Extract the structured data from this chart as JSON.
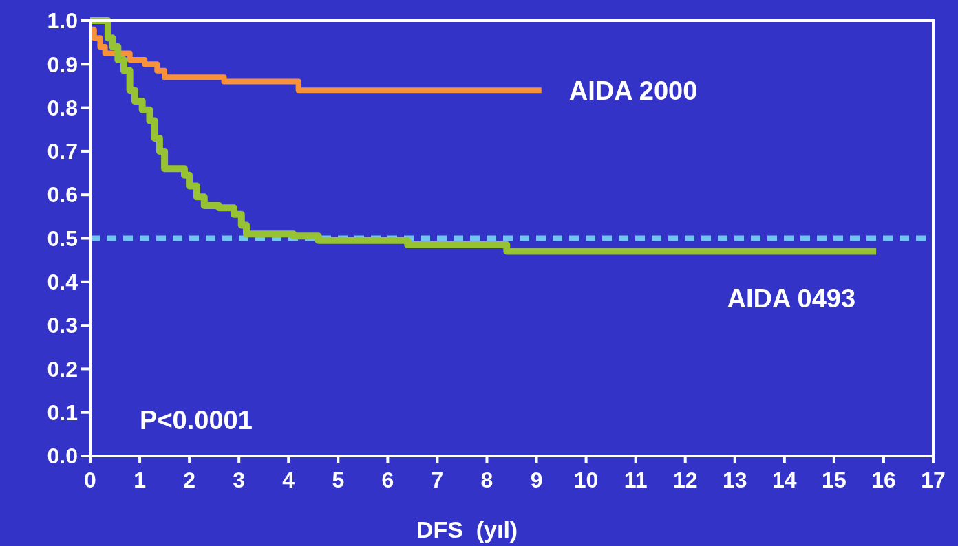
{
  "chart_data": {
    "type": "step",
    "xlabel": "DFS  (yıl)",
    "xlim": [
      0,
      17
    ],
    "xticks": [
      0,
      1,
      2,
      3,
      4,
      5,
      6,
      7,
      8,
      9,
      10,
      11,
      12,
      13,
      14,
      15,
      16,
      17
    ],
    "ylim": [
      0,
      1
    ],
    "yticks": [
      {
        "value": 0,
        "label": "0.0"
      },
      0.1,
      0.2,
      0.3,
      0.4,
      0.5,
      0.6,
      0.7,
      0.8,
      0.9,
      {
        "value": 1,
        "label": "1.0"
      }
    ],
    "grid": false,
    "marker": "none",
    "line_style": "solid",
    "series": [
      {
        "name": "AIDA 2000",
        "color": "#f7923a",
        "x": [
          0,
          0.08,
          0.2,
          0.3,
          0.8,
          1.1,
          1.35,
          1.5,
          2.7,
          4.2,
          9.1
        ],
        "values": [
          0.98,
          0.96,
          0.94,
          0.925,
          0.91,
          0.9,
          0.885,
          0.87,
          0.86,
          0.84,
          0.84
        ]
      },
      {
        "name": "AIDA 0493",
        "color": "#97c233",
        "x": [
          0,
          0.36,
          0.45,
          0.56,
          0.68,
          0.8,
          0.9,
          1.05,
          1.2,
          1.3,
          1.4,
          1.5,
          1.9,
          2.0,
          2.15,
          2.3,
          2.6,
          2.9,
          3.05,
          3.15,
          4.1,
          4.6,
          6.4,
          8.4,
          15.85
        ],
        "values": [
          1.0,
          0.96,
          0.94,
          0.91,
          0.885,
          0.84,
          0.815,
          0.795,
          0.77,
          0.73,
          0.7,
          0.66,
          0.645,
          0.62,
          0.595,
          0.575,
          0.57,
          0.555,
          0.53,
          0.51,
          0.505,
          0.495,
          0.485,
          0.47,
          0.47
        ]
      }
    ],
    "ref_lines": [
      {
        "axis": "y",
        "value": 0.5,
        "color": "#6ec6f0",
        "line_style": "dashed"
      }
    ],
    "annotations": [
      "P<0.0001"
    ]
  }
}
